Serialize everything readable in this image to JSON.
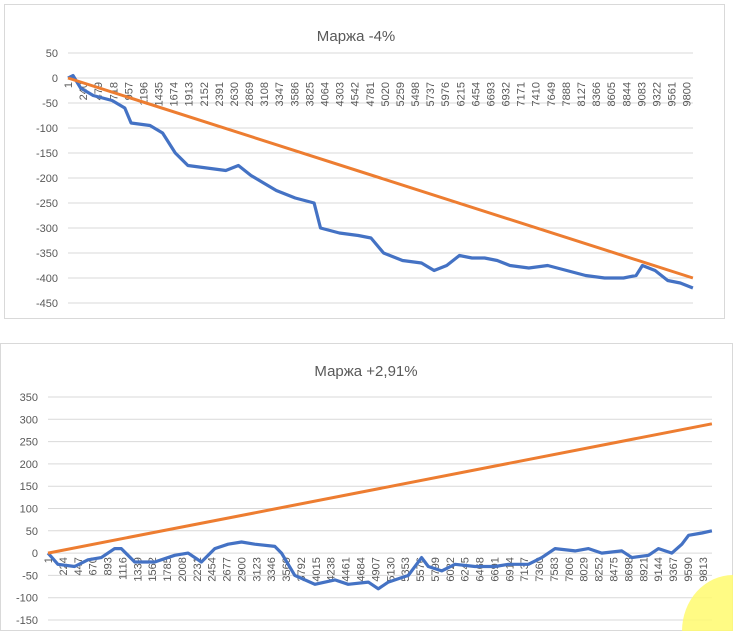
{
  "chart_data": [
    {
      "type": "line",
      "title": "Маржа -4%",
      "ylim": [
        -450,
        50
      ],
      "yticks": [
        50,
        0,
        -50,
        -100,
        -150,
        -200,
        -250,
        -300,
        -350,
        -400,
        -450
      ],
      "xtick_labels": [
        "1",
        "240",
        "479",
        "718",
        "957",
        "1196",
        "1435",
        "1674",
        "1913",
        "2152",
        "2391",
        "2630",
        "2869",
        "3108",
        "3347",
        "3586",
        "3825",
        "4064",
        "4303",
        "4542",
        "4781",
        "5020",
        "5259",
        "5498",
        "5737",
        "5976",
        "6215",
        "6454",
        "6693",
        "6932",
        "7171",
        "7410",
        "7649",
        "7888",
        "8127",
        "8366",
        "8605",
        "8844",
        "9083",
        "9322",
        "9561",
        "9800"
      ],
      "grid": true,
      "colors": {
        "series1": "#4472C4",
        "series2": "#ED7D31"
      },
      "series": [
        {
          "x": [
            1,
            80,
            200,
            400,
            700,
            900,
            1000,
            1300,
            1500,
            1700,
            1900,
            2200,
            2500,
            2700,
            2900,
            3100,
            3300,
            3600,
            3900,
            4000,
            4300,
            4600,
            4800,
            5000,
            5300,
            5600,
            5800,
            6000,
            6200,
            6400,
            6600,
            6800,
            7000,
            7300,
            7600,
            7900,
            8200,
            8500,
            8800,
            9000,
            9100,
            9300,
            9500,
            9700,
            9900
          ],
          "y": [
            0,
            5,
            -20,
            -35,
            -45,
            -60,
            -90,
            -95,
            -110,
            -150,
            -175,
            -180,
            -185,
            -175,
            -195,
            -210,
            -225,
            -240,
            -250,
            -300,
            -310,
            -315,
            -320,
            -350,
            -365,
            -370,
            -385,
            -375,
            -355,
            -360,
            -360,
            -365,
            -375,
            -380,
            -375,
            -385,
            -395,
            -400,
            -400,
            -395,
            -375,
            -385,
            -405,
            -410,
            -420
          ]
        },
        {
          "x": [
            1,
            9900
          ],
          "y": [
            0,
            -400
          ]
        }
      ]
    },
    {
      "type": "line",
      "title": "Маржа +2,91%",
      "ylim": [
        -150,
        350
      ],
      "yticks": [
        350,
        300,
        250,
        200,
        150,
        100,
        50,
        0,
        -50,
        -100,
        -150
      ],
      "xtick_labels": [
        "1",
        "224",
        "447",
        "670",
        "893",
        "1116",
        "1339",
        "1562",
        "1785",
        "2008",
        "2231",
        "2454",
        "2677",
        "2900",
        "3123",
        "3346",
        "3569",
        "3792",
        "4015",
        "4238",
        "4461",
        "4684",
        "4907",
        "5130",
        "5353",
        "5576",
        "5799",
        "6022",
        "6245",
        "6468",
        "6691",
        "6914",
        "7137",
        "7360",
        "7583",
        "7806",
        "8029",
        "8252",
        "8475",
        "8698",
        "8921",
        "9144",
        "9367",
        "9590",
        "9813"
      ],
      "grid": true,
      "colors": {
        "series1": "#4472C4",
        "series2": "#ED7D31"
      },
      "series": [
        {
          "x": [
            1,
            150,
            400,
            600,
            800,
            1000,
            1100,
            1300,
            1600,
            1900,
            2100,
            2300,
            2500,
            2700,
            2900,
            3100,
            3400,
            3500,
            3700,
            4000,
            4300,
            4500,
            4800,
            4950,
            5100,
            5400,
            5600,
            5700,
            5900,
            6100,
            6400,
            6700,
            6900,
            7200,
            7400,
            7600,
            7900,
            8100,
            8300,
            8600,
            8750,
            9000,
            9150,
            9350,
            9500,
            9600,
            9800,
            9950
          ],
          "y": [
            0,
            -25,
            -30,
            -15,
            -10,
            10,
            10,
            -20,
            -20,
            -5,
            0,
            -20,
            10,
            20,
            25,
            20,
            15,
            0,
            -50,
            -70,
            -60,
            -70,
            -65,
            -80,
            -65,
            -50,
            -10,
            -30,
            -40,
            -25,
            -30,
            -30,
            -25,
            -25,
            -10,
            10,
            5,
            10,
            0,
            5,
            -10,
            -5,
            10,
            0,
            20,
            40,
            45,
            50
          ]
        },
        {
          "x": [
            1,
            9950
          ],
          "y": [
            0,
            290
          ]
        }
      ]
    }
  ]
}
